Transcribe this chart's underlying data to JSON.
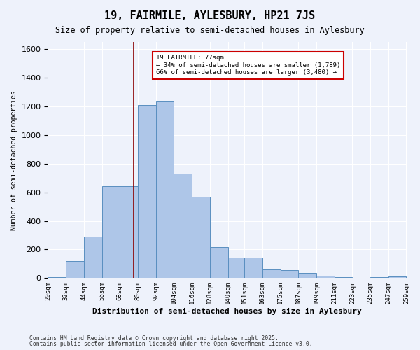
{
  "title": "19, FAIRMILE, AYLESBURY, HP21 7JS",
  "subtitle": "Size of property relative to semi-detached houses in Aylesbury",
  "xlabel": "Distribution of semi-detached houses by size in Aylesbury",
  "ylabel": "Number of semi-detached properties",
  "footnote1": "Contains HM Land Registry data © Crown copyright and database right 2025.",
  "footnote2": "Contains public sector information licensed under the Open Government Licence v3.0.",
  "bin_labels": [
    "20sqm",
    "32sqm",
    "44sqm",
    "56sqm",
    "68sqm",
    "80sqm",
    "92sqm",
    "104sqm",
    "116sqm",
    "128sqm",
    "140sqm",
    "151sqm",
    "163sqm",
    "175sqm",
    "187sqm",
    "199sqm",
    "211sqm",
    "223sqm",
    "235sqm",
    "247sqm",
    "259sqm"
  ],
  "bin_edges": [
    20,
    32,
    44,
    56,
    68,
    80,
    92,
    104,
    116,
    128,
    140,
    151,
    163,
    175,
    187,
    199,
    211,
    223,
    235,
    247,
    259
  ],
  "bar_heights": [
    5,
    120,
    290,
    640,
    640,
    1210,
    1240,
    730,
    570,
    215,
    145,
    145,
    60,
    55,
    35,
    15,
    5,
    0,
    5,
    10
  ],
  "bar_color": "#aec6e8",
  "bar_edge_color": "#5a8fc0",
  "property_size": 77,
  "property_line_color": "#8b0000",
  "annotation_line1": "19 FAIRMILE: 77sqm",
  "annotation_line2": "← 34% of semi-detached houses are smaller (1,789)",
  "annotation_line3": "66% of semi-detached houses are larger (3,480) →",
  "annotation_box_color": "#ffffff",
  "annotation_box_edge_color": "#cc0000",
  "ylim": [
    0,
    1650
  ],
  "background_color": "#eef2fb",
  "grid_color": "#ffffff"
}
